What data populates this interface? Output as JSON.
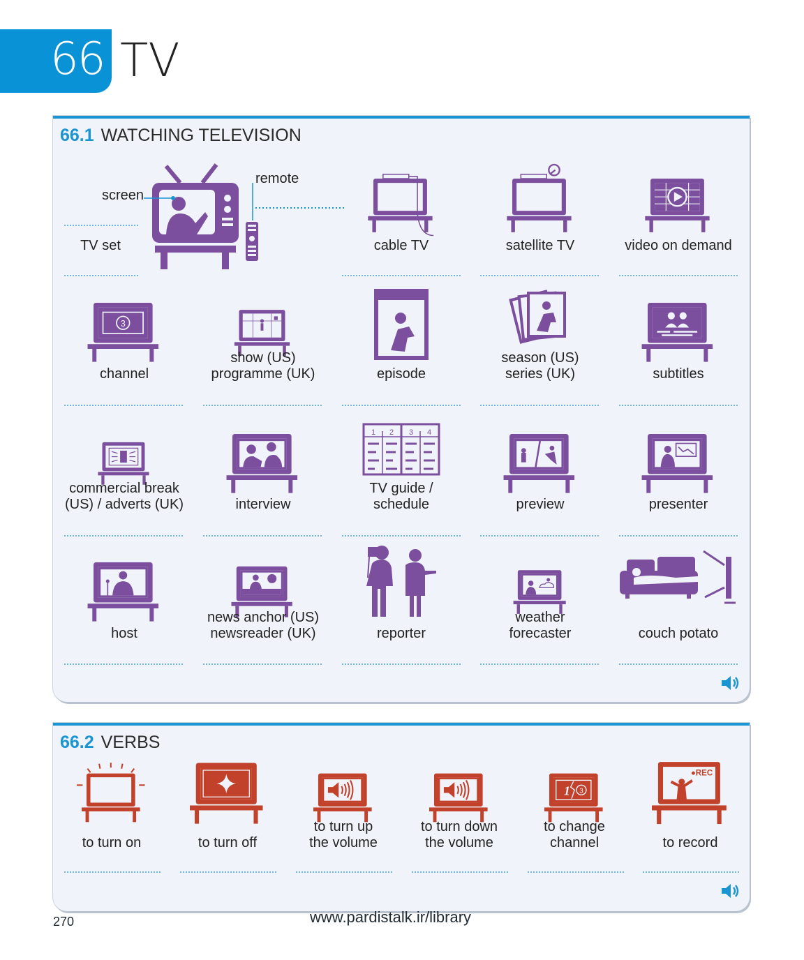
{
  "unit": {
    "number": "66",
    "title": "TV"
  },
  "colors": {
    "brand": "#0a92d6",
    "purple": "#7b4f9d",
    "red": "#c2412a",
    "panel_bg": "#f0f4fa",
    "dots": "#6fb5dc"
  },
  "section1": {
    "number": "66.1",
    "heading": "WATCHING TELEVISION",
    "callouts": {
      "screen": "screen",
      "remote": "remote"
    },
    "items": [
      {
        "label": "TV set",
        "icon": "tv-set-icon"
      },
      {
        "label": "cable TV",
        "icon": "cable-tv-icon"
      },
      {
        "label": "satellite TV",
        "icon": "satellite-tv-icon"
      },
      {
        "label": "video on demand",
        "icon": "video-on-demand-icon"
      },
      {
        "label": "channel",
        "icon": "channel-icon"
      },
      {
        "label": "show (US)\nprogramme (UK)",
        "icon": "show-icon"
      },
      {
        "label": "episode",
        "icon": "episode-icon"
      },
      {
        "label": "season (US)\nseries (UK)",
        "icon": "season-icon"
      },
      {
        "label": "subtitles",
        "icon": "subtitles-icon"
      },
      {
        "label": "commercial break\n(US) / adverts (UK)",
        "icon": "commercial-break-icon"
      },
      {
        "label": "interview",
        "icon": "interview-icon"
      },
      {
        "label": "TV guide /\nschedule",
        "icon": "tv-guide-icon"
      },
      {
        "label": "preview",
        "icon": "preview-icon"
      },
      {
        "label": "presenter",
        "icon": "presenter-icon"
      },
      {
        "label": "host",
        "icon": "host-icon"
      },
      {
        "label": "news anchor (US)\nnewsreader (UK)",
        "icon": "news-anchor-icon"
      },
      {
        "label": "reporter",
        "icon": "reporter-icon"
      },
      {
        "label": "weather\nforecaster",
        "icon": "weather-forecaster-icon"
      },
      {
        "label": "couch potato",
        "icon": "couch-potato-icon"
      }
    ],
    "guide_columns": [
      "1",
      "2",
      "3",
      "4"
    ],
    "channel_number": "3"
  },
  "section2": {
    "number": "66.2",
    "heading": "VERBS",
    "items": [
      {
        "label": "to turn on",
        "icon": "turn-on-icon"
      },
      {
        "label": "to turn off",
        "icon": "turn-off-icon"
      },
      {
        "label": "to turn up\nthe volume",
        "icon": "volume-up-icon"
      },
      {
        "label": "to turn down\nthe volume",
        "icon": "volume-down-icon"
      },
      {
        "label": "to change\nchannel",
        "icon": "change-channel-icon"
      },
      {
        "label": "to record",
        "icon": "record-icon"
      }
    ],
    "record_badge": "●REC",
    "change_channel_from": "1",
    "change_channel_to": "3"
  },
  "footer": {
    "page_number": "270",
    "url": "www.pardistalk.ir/library"
  }
}
